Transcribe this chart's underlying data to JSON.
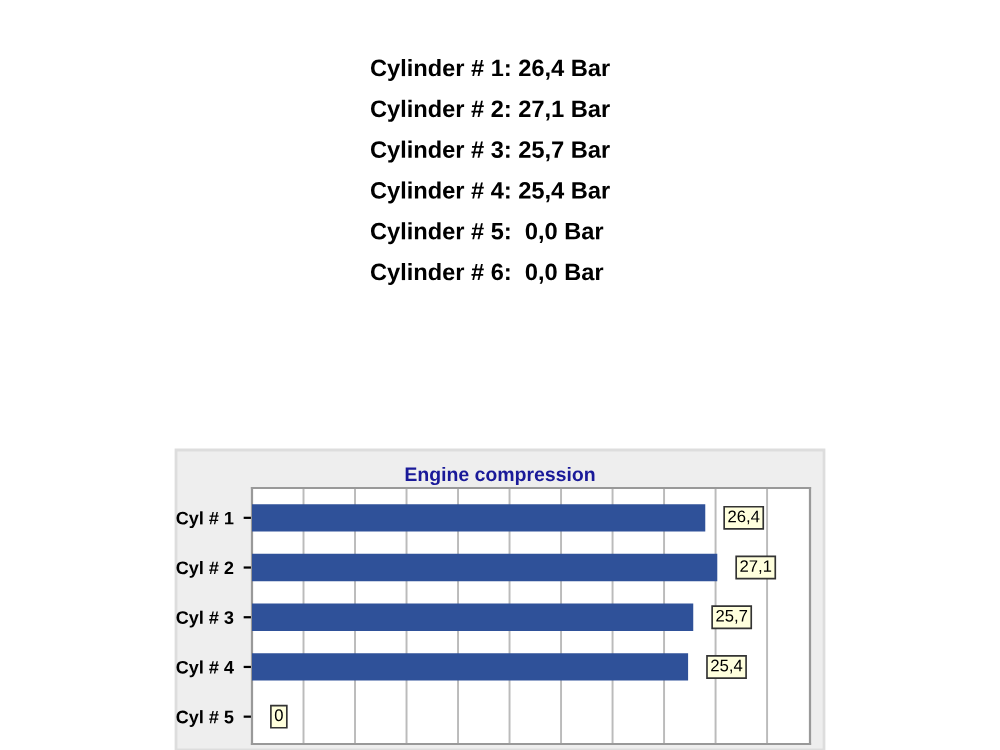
{
  "chart_data": {
    "type": "bar",
    "orientation": "horizontal",
    "title": "Engine compression",
    "annotations": [
      "Cylinder # 1: 26,4 Bar",
      "Cylinder # 2: 27,1 Bar",
      "Cylinder # 3: 25,7 Bar",
      "Cylinder # 4: 25,4 Bar",
      "Cylinder # 5:  0,0 Bar",
      "Cylinder # 6:  0,0 Bar"
    ],
    "categories": [
      "Cyl # 1",
      "Cyl # 2",
      "Cyl # 3",
      "Cyl # 4",
      "Cyl # 5"
    ],
    "values": [
      26.4,
      27.1,
      25.7,
      25.4,
      0
    ],
    "value_labels": [
      "26,4",
      "27,1",
      "25,7",
      "25,4",
      "0"
    ],
    "color": "#2f5199",
    "xlim": [
      0,
      32.5
    ],
    "xticks": [
      {
        "value": 0,
        "label": null
      },
      {
        "value": 3,
        "label": null
      },
      {
        "value": 6,
        "label": null
      },
      {
        "value": 9,
        "label": null
      },
      {
        "value": 12,
        "label": null
      },
      {
        "value": 15,
        "label": null
      },
      {
        "value": 18,
        "label": null
      },
      {
        "value": 21,
        "label": null
      },
      {
        "value": 24,
        "label": null
      },
      {
        "value": 27,
        "label": null
      },
      {
        "value": 30,
        "label": null
      }
    ],
    "grid": "x",
    "tick_labels": "y",
    "legend": false
  }
}
